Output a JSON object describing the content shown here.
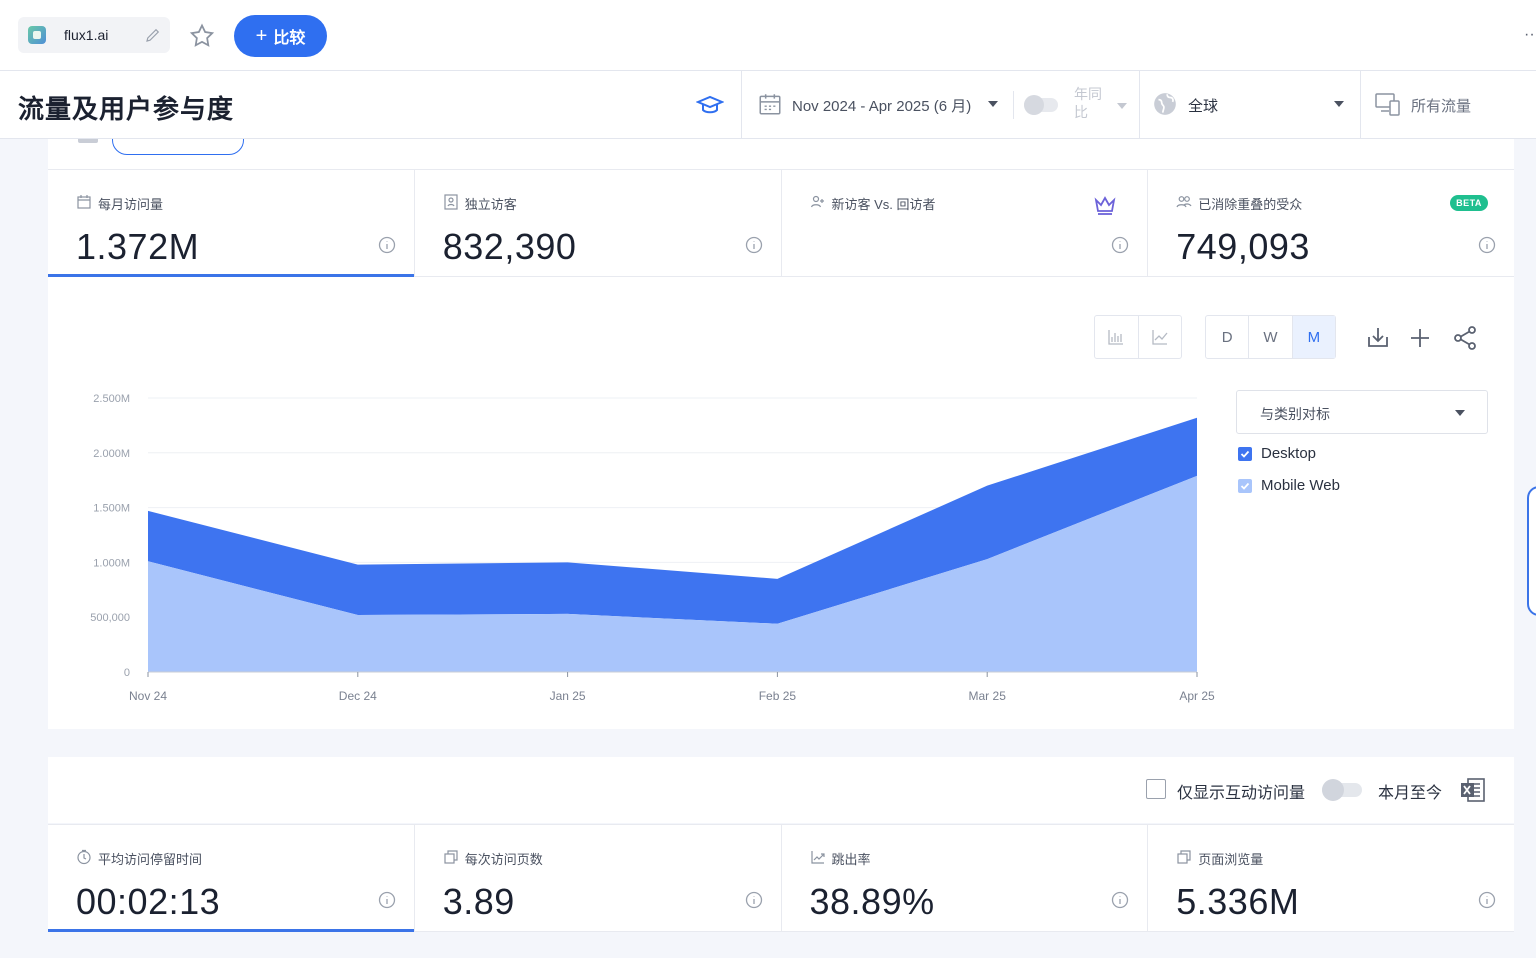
{
  "topbar": {
    "site_name": "flux1.ai",
    "compare_label": "比较",
    "more": "··"
  },
  "header": {
    "title": "流量及用户参与度",
    "date_range": "Nov 2024 - Apr 2025 (6 月)",
    "yoy_label": "年同比",
    "region": "全球",
    "traffic": "所有流量"
  },
  "metrics_top": [
    {
      "label": "每月访问量",
      "value": "1.372M",
      "icon": "calendar-icon"
    },
    {
      "label": "独立访客",
      "value": "832,390",
      "icon": "person-card-icon"
    },
    {
      "label": "新访客 Vs. 回访者",
      "value": "",
      "icon": "add-user-icon"
    },
    {
      "label": "已消除重叠的受众",
      "value": "749,093",
      "icon": "users-icon",
      "badge": "BETA"
    }
  ],
  "chart_controls": {
    "granularity": [
      "D",
      "W",
      "M"
    ],
    "selected": "M",
    "benchmark_label": "与类别对标"
  },
  "chart_data": {
    "type": "area",
    "stacked": true,
    "categories": [
      "Nov 24",
      "Dec 24",
      "Jan 25",
      "Feb 25",
      "Mar 25",
      "Apr 25"
    ],
    "y_ticks": [
      "0",
      "500,000",
      "1.000M",
      "1.500M",
      "2.000M",
      "2.500M"
    ],
    "ylim": [
      0,
      2500000
    ],
    "grid": true,
    "legend_position": "right",
    "series": [
      {
        "name": "Desktop",
        "color": "#3e74f0",
        "values": [
          460000,
          460000,
          470000,
          410000,
          670000,
          530000
        ]
      },
      {
        "name": "Mobile Web",
        "color": "#a9c5fb",
        "values": [
          1010000,
          520000,
          530000,
          440000,
          1030000,
          1790000
        ]
      }
    ]
  },
  "bottom": {
    "engaged_label": "仅显示互动访问量",
    "mtd_label": "本月至今"
  },
  "metrics_bottom": [
    {
      "label": "平均访问停留时间",
      "value": "00:02:13",
      "icon": "clock-icon"
    },
    {
      "label": "每次访问页数",
      "value": "3.89",
      "icon": "pages-icon"
    },
    {
      "label": "跳出率",
      "value": "38.89%",
      "icon": "bounce-icon"
    },
    {
      "label": "页面浏览量",
      "value": "5.336M",
      "icon": "pages-icon"
    }
  ]
}
